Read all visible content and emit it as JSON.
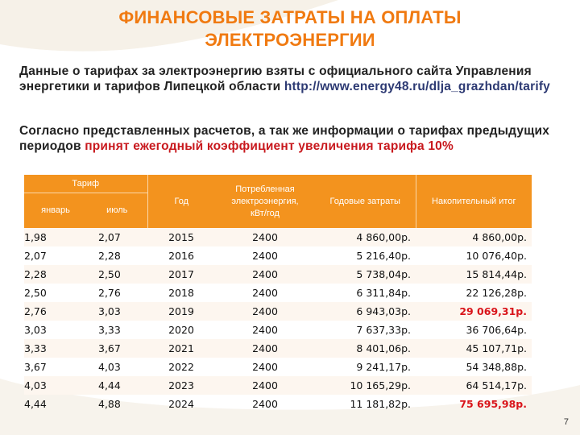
{
  "title": "ФИНАНСОВЫЕ ЗАТРАТЫ НА ОПЛАТЫ ЭЛЕКТРОЭНЕРГИИ",
  "intro": {
    "text": "Данные о тарифах за электроэнергию взяты с официального сайта Управления энергетики и тарифов Липецкой области",
    "url": "http://www.energy48.ru/dlja_grazhdan/tarify"
  },
  "note": {
    "text": "Согласно представленных расчетов, а так же информации о тарифах предыдущих периодов",
    "highlight": "принят ежегодный коэффициент увеличения тарифа 10%"
  },
  "table": {
    "headers": {
      "tariff": "Тариф",
      "january": "январь",
      "july": "июль",
      "year": "Год",
      "consumption": "Потребленная электроэнергия, кВт/год",
      "annual_cost": "Годовые затраты",
      "cumulative": "Накопительный итог"
    },
    "rows": [
      {
        "jan": "1,98",
        "jul": "2,07",
        "year": "2015",
        "kwh": "2400",
        "cost": "4 860,00р.",
        "total": "4 860,00р.",
        "highlight": false
      },
      {
        "jan": "2,07",
        "jul": "2,28",
        "year": "2016",
        "kwh": "2400",
        "cost": "5 216,40р.",
        "total": "10 076,40р.",
        "highlight": false
      },
      {
        "jan": "2,28",
        "jul": "2,50",
        "year": "2017",
        "kwh": "2400",
        "cost": "5 738,04р.",
        "total": "15 814,44р.",
        "highlight": false
      },
      {
        "jan": "2,50",
        "jul": "2,76",
        "year": "2018",
        "kwh": "2400",
        "cost": "6 311,84р.",
        "total": "22 126,28р.",
        "highlight": false
      },
      {
        "jan": "2,76",
        "jul": "3,03",
        "year": "2019",
        "kwh": "2400",
        "cost": "6 943,03р.",
        "total": "29 069,31р.",
        "highlight": true
      },
      {
        "jan": "3,03",
        "jul": "3,33",
        "year": "2020",
        "kwh": "2400",
        "cost": "7 637,33р.",
        "total": "36 706,64р.",
        "highlight": false
      },
      {
        "jan": "3,33",
        "jul": "3,67",
        "year": "2021",
        "kwh": "2400",
        "cost": "8 401,06р.",
        "total": "45 107,71р.",
        "highlight": false
      },
      {
        "jan": "3,67",
        "jul": "4,03",
        "year": "2022",
        "kwh": "2400",
        "cost": "9 241,17р.",
        "total": "54 348,88р.",
        "highlight": false
      },
      {
        "jan": "4,03",
        "jul": "4,44",
        "year": "2023",
        "kwh": "2400",
        "cost": "10 165,29р.",
        "total": "64 514,17р.",
        "highlight": false
      },
      {
        "jan": "4,44",
        "jul": "4,88",
        "year": "2024",
        "kwh": "2400",
        "cost": "11 181,82р.",
        "total": "75 695,98р.",
        "highlight": true
      }
    ]
  },
  "page_number": "7",
  "colors": {
    "accent": "#f07a11",
    "header_bg": "#f3931e",
    "highlight": "#d9141a",
    "url": "#2d3a73"
  }
}
